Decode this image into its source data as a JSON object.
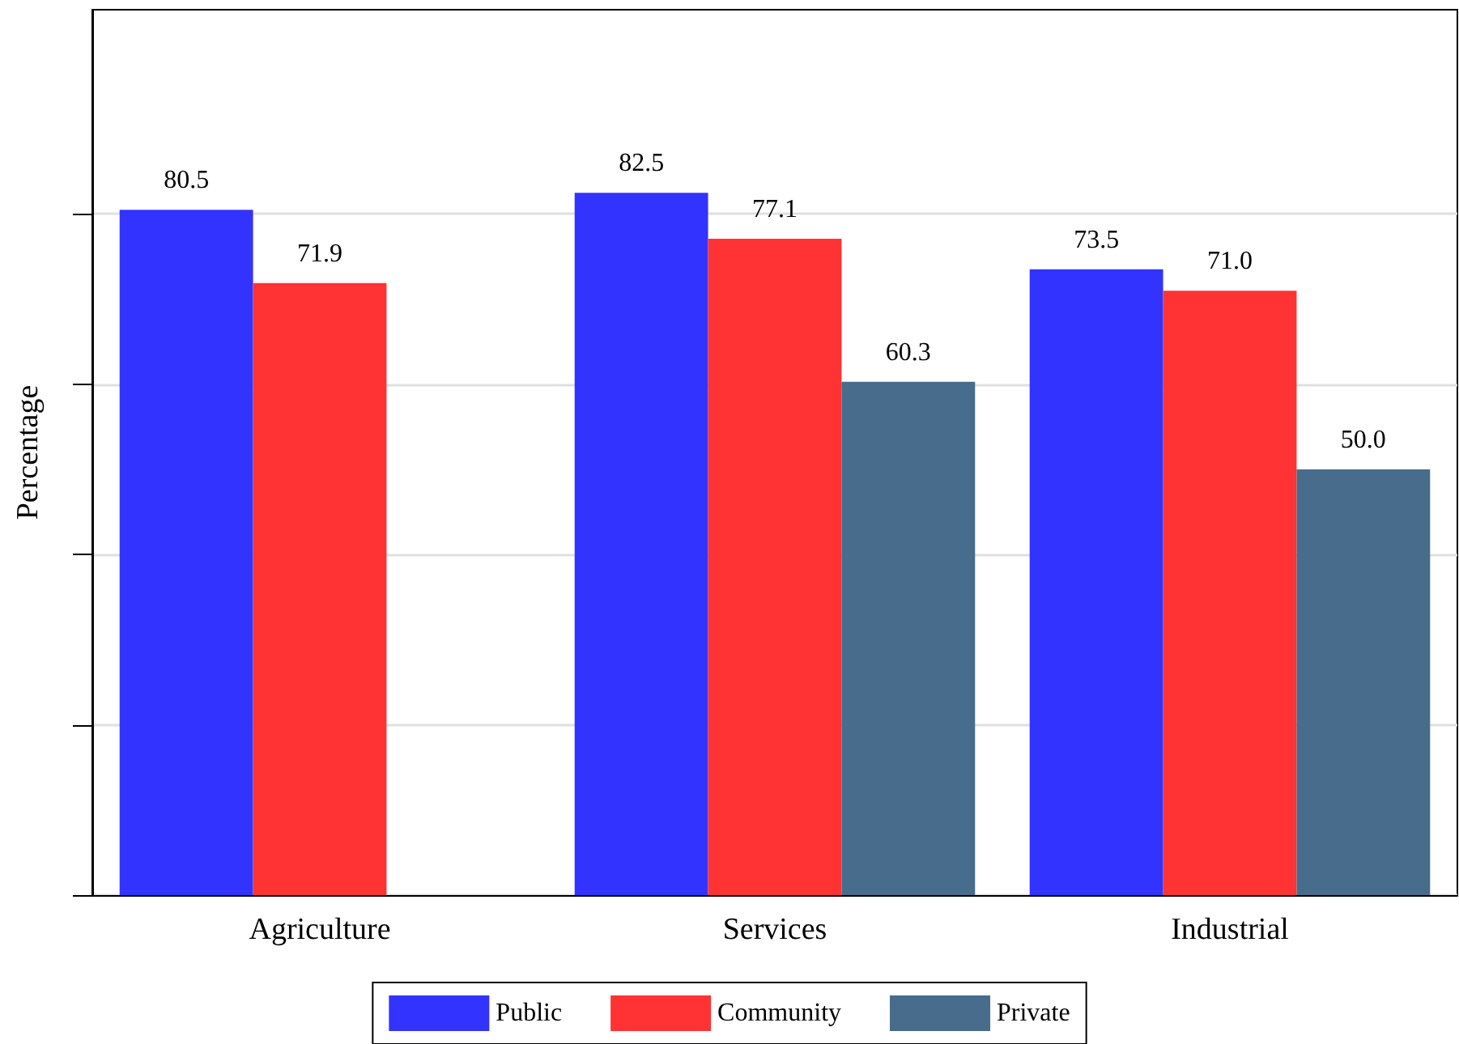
{
  "chart_data": {
    "type": "bar",
    "ylabel": "Percentage",
    "categories": [
      "Agriculture",
      "Services",
      "Industrial"
    ],
    "series": [
      {
        "name": "Public",
        "color": "#3333ff",
        "values": [
          80.5,
          82.5,
          73.5
        ],
        "value_labels": [
          "80.5",
          "82.5",
          "73.5"
        ]
      },
      {
        "name": "Community",
        "color": "#ff3333",
        "values": [
          71.9,
          77.1,
          71.0
        ],
        "value_labels": [
          "71.9",
          "77.1",
          "71.0"
        ]
      },
      {
        "name": "Private",
        "color": "#476c8c",
        "values": [
          null,
          60.3,
          50.0
        ],
        "value_labels": [
          null,
          "60.3",
          "50.0"
        ]
      }
    ],
    "ylim": [
      0,
      104
    ],
    "yticks": [
      {
        "value": 0,
        "label": null
      },
      {
        "value": 20,
        "label": null
      },
      {
        "value": 40,
        "label": null
      },
      {
        "value": 60,
        "label": null
      },
      {
        "value": 80,
        "label": null
      }
    ],
    "tick_labels": "x",
    "grid": "y",
    "legend": "bottom"
  }
}
